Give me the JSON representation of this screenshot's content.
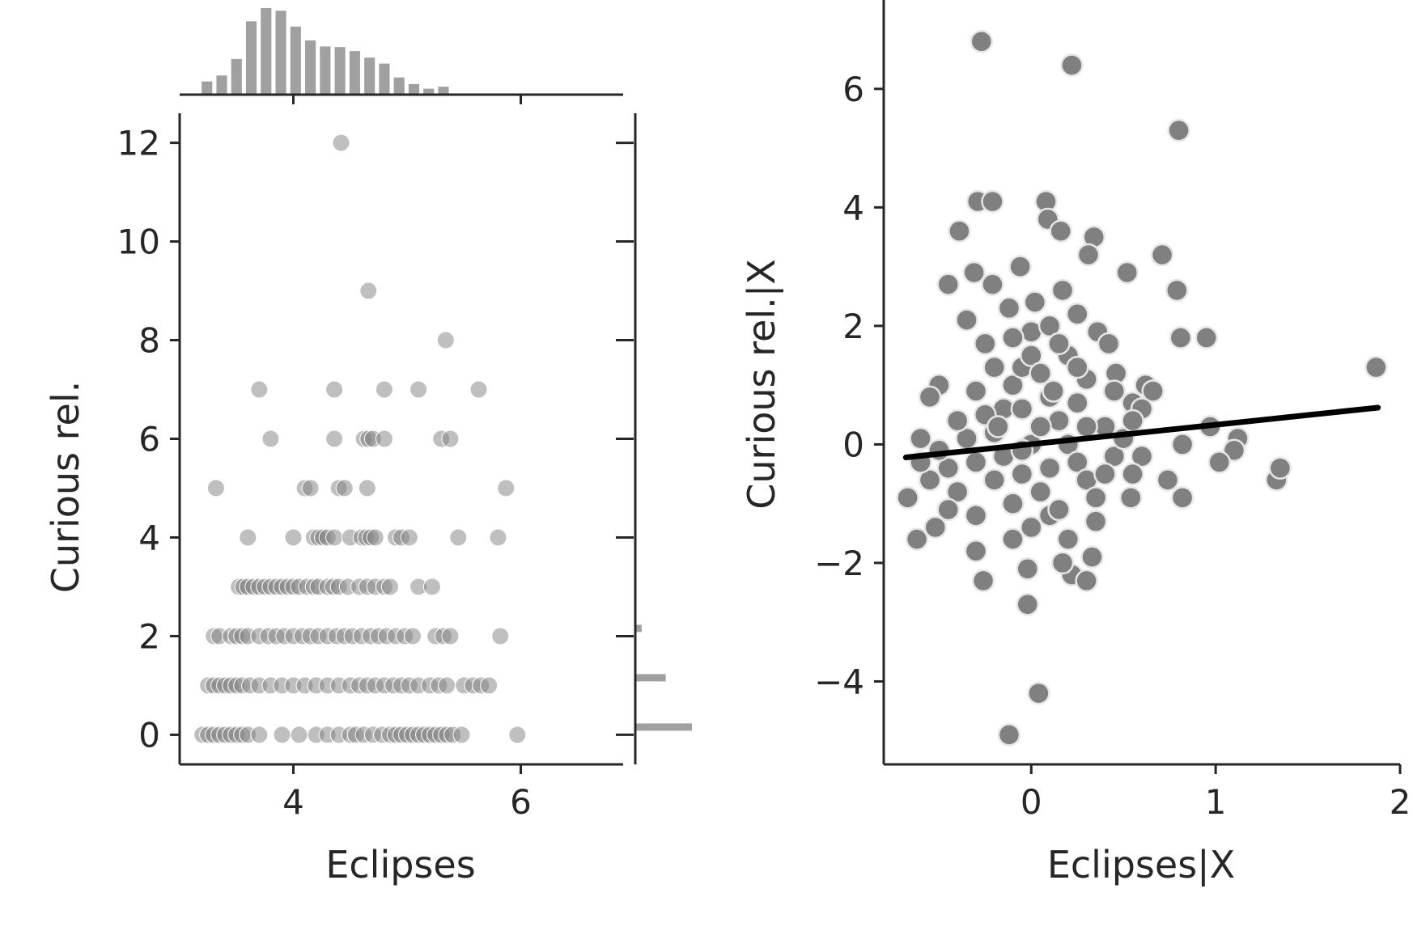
{
  "chart_data": [
    {
      "type": "scatter",
      "xlabel": "Eclipses",
      "ylabel": "Curious rel.",
      "xlim": [
        3.0,
        6.9
      ],
      "ylim": [
        -0.6,
        12.6
      ],
      "xticks": [
        4,
        6
      ],
      "yticks": [
        0,
        2,
        4,
        6,
        8,
        10,
        12
      ],
      "marker_color": "#808080",
      "points": [
        [
          3.2,
          0
        ],
        [
          3.25,
          0
        ],
        [
          3.3,
          0
        ],
        [
          3.35,
          0
        ],
        [
          3.4,
          0
        ],
        [
          3.45,
          0
        ],
        [
          3.5,
          0
        ],
        [
          3.55,
          0
        ],
        [
          3.6,
          0
        ],
        [
          3.7,
          0
        ],
        [
          3.9,
          0
        ],
        [
          4.05,
          0
        ],
        [
          4.2,
          0
        ],
        [
          4.3,
          0
        ],
        [
          4.4,
          0
        ],
        [
          4.5,
          0
        ],
        [
          4.55,
          0
        ],
        [
          4.62,
          0
        ],
        [
          4.7,
          0
        ],
        [
          4.78,
          0
        ],
        [
          4.85,
          0
        ],
        [
          4.9,
          0
        ],
        [
          4.95,
          0
        ],
        [
          5.0,
          0
        ],
        [
          5.05,
          0
        ],
        [
          5.1,
          0
        ],
        [
          5.15,
          0
        ],
        [
          5.2,
          0
        ],
        [
          5.25,
          0
        ],
        [
          5.3,
          0
        ],
        [
          5.35,
          0
        ],
        [
          5.4,
          0
        ],
        [
          5.48,
          0
        ],
        [
          5.97,
          0
        ],
        [
          3.25,
          1
        ],
        [
          3.3,
          1
        ],
        [
          3.35,
          1
        ],
        [
          3.4,
          1
        ],
        [
          3.45,
          1
        ],
        [
          3.5,
          1
        ],
        [
          3.55,
          1
        ],
        [
          3.62,
          1
        ],
        [
          3.7,
          1
        ],
        [
          3.8,
          1
        ],
        [
          3.9,
          1
        ],
        [
          4.0,
          1
        ],
        [
          4.1,
          1
        ],
        [
          4.2,
          1
        ],
        [
          4.3,
          1
        ],
        [
          4.4,
          1
        ],
        [
          4.5,
          1
        ],
        [
          4.58,
          1
        ],
        [
          4.65,
          1
        ],
        [
          4.72,
          1
        ],
        [
          4.8,
          1
        ],
        [
          4.88,
          1
        ],
        [
          4.95,
          1
        ],
        [
          5.02,
          1
        ],
        [
          5.1,
          1
        ],
        [
          5.2,
          1
        ],
        [
          5.28,
          1
        ],
        [
          5.35,
          1
        ],
        [
          5.5,
          1
        ],
        [
          5.58,
          1
        ],
        [
          5.65,
          1
        ],
        [
          5.72,
          1
        ],
        [
          3.3,
          2
        ],
        [
          3.35,
          2
        ],
        [
          3.45,
          2
        ],
        [
          3.5,
          2
        ],
        [
          3.55,
          2
        ],
        [
          3.6,
          2
        ],
        [
          3.7,
          2
        ],
        [
          3.78,
          2
        ],
        [
          3.85,
          2
        ],
        [
          3.92,
          2
        ],
        [
          4.0,
          2
        ],
        [
          4.08,
          2
        ],
        [
          4.15,
          2
        ],
        [
          4.22,
          2
        ],
        [
          4.3,
          2
        ],
        [
          4.38,
          2
        ],
        [
          4.45,
          2
        ],
        [
          4.52,
          2
        ],
        [
          4.6,
          2
        ],
        [
          4.68,
          2
        ],
        [
          4.75,
          2
        ],
        [
          4.82,
          2
        ],
        [
          4.9,
          2
        ],
        [
          4.98,
          2
        ],
        [
          5.05,
          2
        ],
        [
          5.25,
          2
        ],
        [
          5.32,
          2
        ],
        [
          5.38,
          2
        ],
        [
          5.82,
          2
        ],
        [
          3.52,
          3
        ],
        [
          3.56,
          3
        ],
        [
          3.6,
          3
        ],
        [
          3.65,
          3
        ],
        [
          3.7,
          3
        ],
        [
          3.75,
          3
        ],
        [
          3.8,
          3
        ],
        [
          3.85,
          3
        ],
        [
          3.9,
          3
        ],
        [
          3.95,
          3
        ],
        [
          4.0,
          3
        ],
        [
          4.05,
          3
        ],
        [
          4.12,
          3
        ],
        [
          4.18,
          3
        ],
        [
          4.22,
          3
        ],
        [
          4.3,
          3
        ],
        [
          4.35,
          3
        ],
        [
          4.4,
          3
        ],
        [
          4.48,
          3
        ],
        [
          4.58,
          3
        ],
        [
          4.65,
          3
        ],
        [
          4.72,
          3
        ],
        [
          4.8,
          3
        ],
        [
          4.85,
          3
        ],
        [
          5.1,
          3
        ],
        [
          5.22,
          3
        ],
        [
          3.6,
          4
        ],
        [
          4.0,
          4
        ],
        [
          4.18,
          4
        ],
        [
          4.22,
          4
        ],
        [
          4.26,
          4
        ],
        [
          4.3,
          4
        ],
        [
          4.36,
          4
        ],
        [
          4.5,
          4
        ],
        [
          4.6,
          4
        ],
        [
          4.64,
          4
        ],
        [
          4.68,
          4
        ],
        [
          4.72,
          4
        ],
        [
          4.9,
          4
        ],
        [
          4.95,
          4
        ],
        [
          5.02,
          4
        ],
        [
          5.45,
          4
        ],
        [
          5.8,
          4
        ],
        [
          3.32,
          5
        ],
        [
          4.1,
          5
        ],
        [
          4.15,
          5
        ],
        [
          4.4,
          5
        ],
        [
          4.45,
          5
        ],
        [
          4.65,
          5
        ],
        [
          5.87,
          5
        ],
        [
          3.8,
          6
        ],
        [
          4.36,
          6
        ],
        [
          4.62,
          6
        ],
        [
          4.66,
          6
        ],
        [
          4.7,
          6
        ],
        [
          4.8,
          6
        ],
        [
          5.3,
          6
        ],
        [
          5.38,
          6
        ],
        [
          3.7,
          7
        ],
        [
          4.36,
          7
        ],
        [
          4.8,
          7
        ],
        [
          5.1,
          7
        ],
        [
          5.63,
          7
        ],
        [
          5.34,
          8
        ],
        [
          4.66,
          9
        ],
        [
          4.42,
          12
        ]
      ],
      "marginal_x_histogram": {
        "bin_centers": [
          3.24,
          3.37,
          3.5,
          3.63,
          3.76,
          3.89,
          4.02,
          4.15,
          4.28,
          4.41,
          4.54,
          4.67,
          4.8,
          4.93,
          5.06,
          5.19,
          5.32
        ],
        "counts": [
          20,
          29,
          54,
          111,
          131,
          127,
          103,
          82,
          73,
          72,
          66,
          56,
          47,
          26,
          16,
          9,
          12
        ]
      },
      "marginal_y_histogram": {
        "bin_centers": [
          0,
          1,
          2,
          3
        ],
        "counts": [
          160,
          86,
          18,
          2
        ]
      }
    },
    {
      "type": "scatter",
      "xlabel": "Eclipses|X",
      "ylabel": "Curious rel.|X",
      "xlim": [
        -0.8,
        2.0
      ],
      "ylim": [
        -5.4,
        7.5
      ],
      "xticks": [
        0,
        1,
        2
      ],
      "yticks": [
        -4,
        -2,
        0,
        2,
        4,
        6
      ],
      "marker_color": "#808080",
      "fit_line": {
        "x": [
          -0.68,
          1.88
        ],
        "y": [
          -0.22,
          0.62
        ],
        "color": "#000000"
      },
      "points": [
        [
          -0.27,
          6.8
        ],
        [
          0.22,
          6.4
        ],
        [
          0.8,
          5.3
        ],
        [
          -0.29,
          4.1
        ],
        [
          -0.21,
          4.1
        ],
        [
          0.08,
          4.1
        ],
        [
          0.09,
          3.8
        ],
        [
          0.16,
          3.6
        ],
        [
          -0.39,
          3.6
        ],
        [
          0.34,
          3.5
        ],
        [
          0.31,
          3.2
        ],
        [
          0.71,
          3.2
        ],
        [
          0.52,
          2.9
        ],
        [
          -0.06,
          3.0
        ],
        [
          -0.31,
          2.9
        ],
        [
          -0.45,
          2.7
        ],
        [
          -0.21,
          2.7
        ],
        [
          0.79,
          2.6
        ],
        [
          0.17,
          2.6
        ],
        [
          0.02,
          2.4
        ],
        [
          -0.12,
          2.3
        ],
        [
          0.25,
          2.2
        ],
        [
          -0.35,
          2.1
        ],
        [
          0.81,
          1.8
        ],
        [
          0.95,
          1.8
        ],
        [
          0.36,
          1.9
        ],
        [
          0.42,
          1.7
        ],
        [
          0.46,
          1.2
        ],
        [
          -0.5,
          1.0
        ],
        [
          -0.55,
          0.8
        ],
        [
          0.62,
          1.0
        ],
        [
          0.66,
          0.9
        ],
        [
          0.55,
          0.7
        ],
        [
          1.87,
          1.3
        ],
        [
          0.6,
          0.6
        ],
        [
          0.97,
          0.3
        ],
        [
          0.82,
          0.0
        ],
        [
          1.12,
          0.1
        ],
        [
          1.1,
          -0.1
        ],
        [
          1.02,
          -0.3
        ],
        [
          0.74,
          -0.6
        ],
        [
          0.82,
          -0.9
        ],
        [
          -0.67,
          -0.9
        ],
        [
          -0.62,
          -1.6
        ],
        [
          -0.52,
          -1.4
        ],
        [
          -0.3,
          -1.8
        ],
        [
          -0.26,
          -2.3
        ],
        [
          -0.02,
          -2.1
        ],
        [
          0.22,
          -2.2
        ],
        [
          0.33,
          -1.9
        ],
        [
          -0.02,
          -2.7
        ],
        [
          0.04,
          -4.2
        ],
        [
          -0.12,
          -4.9
        ],
        [
          1.33,
          -0.6
        ],
        [
          1.35,
          -0.4
        ],
        [
          0.54,
          -0.9
        ],
        [
          0.17,
          -2.0
        ],
        [
          0.3,
          -2.3
        ],
        [
          -0.2,
          0.2
        ],
        [
          -0.15,
          0.6
        ],
        [
          -0.1,
          1.0
        ],
        [
          -0.05,
          1.3
        ],
        [
          0.0,
          1.5
        ],
        [
          0.05,
          1.2
        ],
        [
          0.1,
          0.8
        ],
        [
          0.15,
          0.4
        ],
        [
          0.2,
          0.0
        ],
        [
          0.25,
          -0.3
        ],
        [
          0.3,
          -0.6
        ],
        [
          0.35,
          -0.9
        ],
        [
          0.1,
          -1.2
        ],
        [
          0.0,
          -1.4
        ],
        [
          -0.1,
          -1.0
        ],
        [
          -0.2,
          -0.6
        ],
        [
          -0.3,
          -0.3
        ],
        [
          -0.35,
          0.1
        ],
        [
          -0.25,
          0.5
        ],
        [
          -0.15,
          -0.2
        ],
        [
          -0.05,
          -0.5
        ],
        [
          0.05,
          -0.8
        ],
        [
          0.15,
          -1.1
        ],
        [
          0.25,
          0.7
        ],
        [
          0.3,
          1.1
        ],
        [
          -0.4,
          -0.8
        ],
        [
          -0.45,
          -0.4
        ],
        [
          -0.4,
          0.4
        ],
        [
          -0.3,
          0.9
        ],
        [
          -0.2,
          1.3
        ],
        [
          0.2,
          1.5
        ],
        [
          0.4,
          0.3
        ],
        [
          0.45,
          -0.2
        ],
        [
          0.5,
          0.1
        ],
        [
          0.4,
          -0.5
        ],
        [
          -0.5,
          -0.1
        ],
        [
          -0.55,
          -0.6
        ],
        [
          0.0,
          0.0
        ],
        [
          0.05,
          0.3
        ],
        [
          -0.05,
          0.6
        ],
        [
          0.1,
          -0.4
        ],
        [
          -0.1,
          -1.6
        ],
        [
          0.2,
          -1.6
        ],
        [
          0.35,
          -1.3
        ],
        [
          -0.3,
          -1.2
        ],
        [
          -0.45,
          -1.1
        ],
        [
          0.0,
          1.9
        ],
        [
          -0.1,
          1.8
        ],
        [
          0.1,
          2.0
        ],
        [
          0.15,
          1.7
        ],
        [
          -0.25,
          1.7
        ],
        [
          0.25,
          1.3
        ],
        [
          0.45,
          0.9
        ],
        [
          0.55,
          0.4
        ],
        [
          0.6,
          -0.2
        ],
        [
          0.55,
          -0.5
        ],
        [
          -0.6,
          -0.3
        ],
        [
          -0.6,
          0.1
        ],
        [
          0.3,
          0.3
        ],
        [
          -0.05,
          -0.1
        ],
        [
          0.12,
          0.9
        ],
        [
          -0.18,
          0.3
        ]
      ]
    }
  ]
}
